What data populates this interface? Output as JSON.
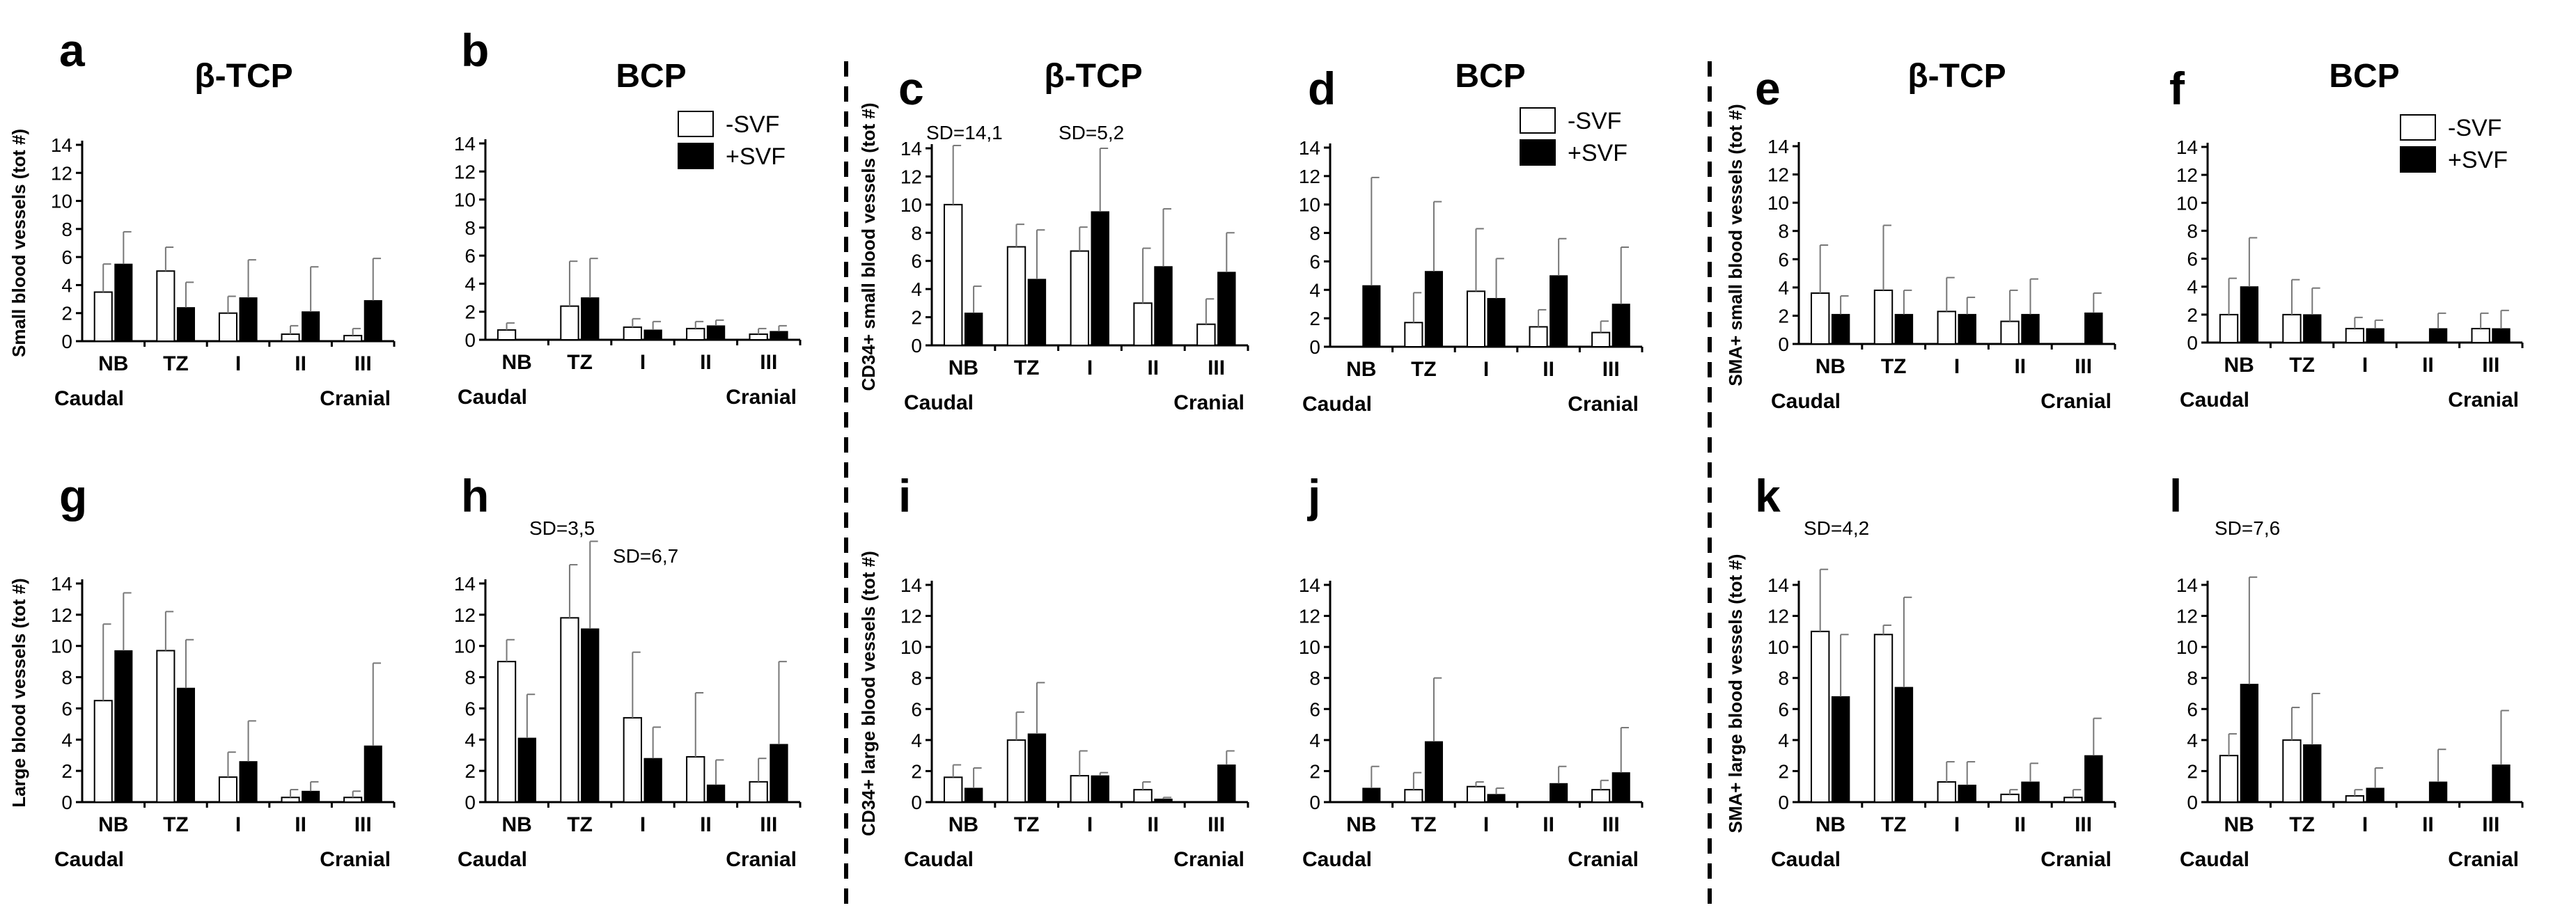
{
  "figure": {
    "legend": {
      "neg": "-SVF",
      "pos": "+SVF"
    },
    "sides": {
      "left": "Caudal",
      "right": "Cranial"
    }
  },
  "chart_data": [
    {
      "id": "a",
      "type": "bar",
      "letter": "a",
      "title": "β-TCP",
      "ylabel": "Small blood vessels (tot #)",
      "categories": [
        "NB",
        "TZ",
        "I",
        "II",
        "III"
      ],
      "ylim": [
        0,
        14
      ],
      "yticks": [
        "0",
        "2",
        "4",
        "6",
        "8",
        "10",
        "12",
        "14"
      ],
      "legend": false,
      "series": [
        {
          "name": "-SVF",
          "values": [
            3.5,
            5.0,
            2.0,
            0.5,
            0.4
          ],
          "errors": [
            2.0,
            1.7,
            1.2,
            0.6,
            0.5
          ]
        },
        {
          "name": "+SVF",
          "values": [
            5.5,
            2.4,
            3.1,
            2.1,
            2.9
          ],
          "errors": [
            2.3,
            1.8,
            2.7,
            3.2,
            3.0
          ]
        }
      ],
      "annotations": []
    },
    {
      "id": "b",
      "type": "bar",
      "letter": "b",
      "title": "BCP",
      "ylabel": "",
      "categories": [
        "NB",
        "TZ",
        "I",
        "II",
        "III"
      ],
      "ylim": [
        0,
        14
      ],
      "yticks": [
        "0",
        "2",
        "4",
        "6",
        "8",
        "10",
        "12",
        "14"
      ],
      "legend": true,
      "series": [
        {
          "name": "-SVF",
          "values": [
            0.7,
            2.4,
            0.9,
            0.8,
            0.4
          ],
          "errors": [
            0.5,
            3.2,
            0.6,
            0.5,
            0.4
          ]
        },
        {
          "name": "+SVF",
          "values": [
            0.0,
            3.0,
            0.7,
            1.0,
            0.6
          ],
          "errors": [
            0.0,
            2.8,
            0.6,
            0.4,
            0.4
          ]
        }
      ],
      "annotations": []
    },
    {
      "id": "c",
      "type": "bar",
      "letter": "c",
      "title": "β-TCP",
      "ylabel": "CD34+ small blood vessels (tot #)",
      "categories": [
        "NB",
        "TZ",
        "I",
        "II",
        "III"
      ],
      "ylim": [
        0,
        14
      ],
      "yticks": [
        "0",
        "2",
        "4",
        "6",
        "8",
        "10",
        "12",
        "14"
      ],
      "legend": false,
      "series": [
        {
          "name": "-SVF",
          "values": [
            10.0,
            7.0,
            6.7,
            3.0,
            1.5
          ],
          "errors": [
            4.2,
            1.6,
            1.7,
            3.9,
            1.8
          ]
        },
        {
          "name": "+SVF",
          "values": [
            2.3,
            4.7,
            9.5,
            5.6,
            5.2
          ],
          "errors": [
            1.9,
            3.5,
            4.5,
            4.1,
            2.8
          ]
        }
      ],
      "annotations": [
        {
          "text": "SD=14,1",
          "category": "NB"
        },
        {
          "text": "SD=5,2",
          "category": "I"
        }
      ]
    },
    {
      "id": "d",
      "type": "bar",
      "letter": "d",
      "title": "BCP",
      "ylabel": "",
      "categories": [
        "NB",
        "TZ",
        "I",
        "II",
        "III"
      ],
      "ylim": [
        0,
        14
      ],
      "yticks": [
        "0",
        "2",
        "4",
        "6",
        "8",
        "10",
        "12",
        "14"
      ],
      "legend": true,
      "series": [
        {
          "name": "-SVF",
          "values": [
            0.0,
            1.7,
            3.9,
            1.4,
            1.0
          ],
          "errors": [
            0.0,
            2.1,
            4.4,
            1.2,
            0.8
          ]
        },
        {
          "name": "+SVF",
          "values": [
            4.3,
            5.3,
            3.4,
            5.0,
            3.0
          ],
          "errors": [
            7.6,
            4.9,
            2.8,
            2.6,
            4.0
          ]
        }
      ],
      "annotations": []
    },
    {
      "id": "e",
      "type": "bar",
      "letter": "e",
      "title": "β-TCP",
      "ylabel": "SMA+ small blood vessels (tot #)",
      "categories": [
        "NB",
        "TZ",
        "I",
        "II",
        "III"
      ],
      "ylim": [
        0,
        14
      ],
      "yticks": [
        "0",
        "2",
        "4",
        "6",
        "8",
        "10",
        "12",
        "14"
      ],
      "legend": false,
      "series": [
        {
          "name": "-SVF",
          "values": [
            3.6,
            3.8,
            2.3,
            1.6,
            0.0
          ],
          "errors": [
            3.4,
            4.6,
            2.4,
            2.2,
            0.0
          ]
        },
        {
          "name": "+SVF",
          "values": [
            2.1,
            2.1,
            2.1,
            2.1,
            2.2
          ],
          "errors": [
            1.3,
            1.7,
            1.2,
            2.5,
            1.4
          ]
        }
      ],
      "annotations": []
    },
    {
      "id": "f",
      "type": "bar",
      "letter": "f",
      "title": "BCP",
      "ylabel": "",
      "categories": [
        "NB",
        "TZ",
        "I",
        "II",
        "III"
      ],
      "ylim": [
        0,
        14
      ],
      "yticks": [
        "0",
        "2",
        "4",
        "6",
        "8",
        "10",
        "12",
        "14"
      ],
      "legend": true,
      "series": [
        {
          "name": "-SVF",
          "values": [
            2.0,
            2.0,
            1.0,
            0.0,
            1.0
          ],
          "errors": [
            2.6,
            2.5,
            0.8,
            0.0,
            1.1
          ]
        },
        {
          "name": "+SVF",
          "values": [
            4.0,
            2.0,
            1.0,
            1.0,
            1.0
          ],
          "errors": [
            3.5,
            1.9,
            0.6,
            1.1,
            1.3
          ]
        }
      ],
      "annotations": []
    },
    {
      "id": "g",
      "type": "bar",
      "letter": "g",
      "title": "",
      "ylabel": "Large blood vessels (tot #)",
      "categories": [
        "NB",
        "TZ",
        "I",
        "II",
        "III"
      ],
      "ylim": [
        0,
        14
      ],
      "yticks": [
        "0",
        "2",
        "4",
        "6",
        "8",
        "10",
        "12",
        "14"
      ],
      "legend": false,
      "series": [
        {
          "name": "-SVF",
          "values": [
            6.5,
            9.7,
            1.6,
            0.3,
            0.3
          ],
          "errors": [
            4.9,
            2.5,
            1.6,
            0.5,
            0.4
          ]
        },
        {
          "name": "+SVF",
          "values": [
            9.7,
            7.3,
            2.6,
            0.7,
            3.6
          ],
          "errors": [
            3.7,
            3.1,
            2.6,
            0.6,
            5.3
          ]
        }
      ],
      "annotations": []
    },
    {
      "id": "h",
      "type": "bar",
      "letter": "h",
      "title": "",
      "ylabel": "",
      "categories": [
        "NB",
        "TZ",
        "I",
        "II",
        "III"
      ],
      "ylim": [
        0,
        14
      ],
      "yticks": [
        "0",
        "2",
        "4",
        "6",
        "8",
        "10",
        "12",
        "14"
      ],
      "legend": false,
      "series": [
        {
          "name": "-SVF",
          "values": [
            9.0,
            11.8,
            5.4,
            2.9,
            1.3
          ],
          "errors": [
            1.4,
            3.4,
            4.2,
            4.1,
            1.5
          ]
        },
        {
          "name": "+SVF",
          "values": [
            4.1,
            11.1,
            2.8,
            1.1,
            3.7
          ],
          "errors": [
            2.8,
            5.6,
            2.0,
            1.6,
            5.3
          ]
        }
      ],
      "annotations": [
        {
          "text": "SD=3,5",
          "category": "TZ"
        },
        {
          "text": "SD=6,7",
          "category": "TZ"
        }
      ]
    },
    {
      "id": "i",
      "type": "bar",
      "letter": "i",
      "title": "",
      "ylabel": "CD34+ large blood vessels (tot #)",
      "categories": [
        "NB",
        "TZ",
        "I",
        "II",
        "III"
      ],
      "ylim": [
        0,
        14
      ],
      "yticks": [
        "0",
        "2",
        "4",
        "6",
        "8",
        "10",
        "12",
        "14"
      ],
      "legend": false,
      "series": [
        {
          "name": "-SVF",
          "values": [
            1.6,
            4.0,
            1.7,
            0.8,
            0.0
          ],
          "errors": [
            0.8,
            1.8,
            1.6,
            0.5,
            0.0
          ]
        },
        {
          "name": "+SVF",
          "values": [
            0.9,
            4.4,
            1.7,
            0.2,
            2.4
          ],
          "errors": [
            1.3,
            3.3,
            0.2,
            0.1,
            0.9
          ]
        }
      ],
      "annotations": []
    },
    {
      "id": "j",
      "type": "bar",
      "letter": "j",
      "title": "",
      "ylabel": "",
      "categories": [
        "NB",
        "TZ",
        "I",
        "II",
        "III"
      ],
      "ylim": [
        0,
        14
      ],
      "yticks": [
        "0",
        "2",
        "4",
        "6",
        "8",
        "10",
        "12",
        "14"
      ],
      "legend": false,
      "series": [
        {
          "name": "-SVF",
          "values": [
            0.0,
            0.8,
            1.0,
            0.0,
            0.8
          ],
          "errors": [
            0.0,
            1.1,
            0.3,
            0.0,
            0.6
          ]
        },
        {
          "name": "+SVF",
          "values": [
            0.9,
            3.9,
            0.5,
            1.2,
            1.9
          ],
          "errors": [
            1.4,
            4.1,
            0.4,
            1.1,
            2.9
          ]
        }
      ],
      "annotations": []
    },
    {
      "id": "k",
      "type": "bar",
      "letter": "k",
      "title": "",
      "ylabel": "SMA+ large blood vessels (tot #)",
      "categories": [
        "NB",
        "TZ",
        "I",
        "II",
        "III"
      ],
      "ylim": [
        0,
        14
      ],
      "yticks": [
        "0",
        "2",
        "4",
        "6",
        "8",
        "10",
        "12",
        "14"
      ],
      "legend": false,
      "series": [
        {
          "name": "-SVF",
          "values": [
            11.0,
            10.8,
            1.3,
            0.5,
            0.3
          ],
          "errors": [
            4.0,
            0.6,
            1.3,
            0.3,
            0.5
          ]
        },
        {
          "name": "+SVF",
          "values": [
            6.8,
            7.4,
            1.1,
            1.3,
            3.0
          ],
          "errors": [
            4.0,
            5.8,
            1.5,
            1.2,
            2.4
          ]
        }
      ],
      "annotations": [
        {
          "text": "SD=4,2",
          "category": "NB"
        }
      ]
    },
    {
      "id": "l",
      "type": "bar",
      "letter": "l",
      "title": "",
      "ylabel": "",
      "categories": [
        "NB",
        "TZ",
        "I",
        "II",
        "III"
      ],
      "ylim": [
        0,
        14
      ],
      "yticks": [
        "0",
        "2",
        "4",
        "6",
        "8",
        "10",
        "12",
        "14"
      ],
      "legend": false,
      "series": [
        {
          "name": "-SVF",
          "values": [
            3.0,
            4.0,
            0.4,
            0.0,
            0.0
          ],
          "errors": [
            1.4,
            2.1,
            0.4,
            0.0,
            0.0
          ]
        },
        {
          "name": "+SVF",
          "values": [
            7.6,
            3.7,
            0.9,
            1.3,
            2.4
          ],
          "errors": [
            6.9,
            3.3,
            1.3,
            2.1,
            3.5
          ]
        }
      ],
      "annotations": [
        {
          "text": "SD=7,6",
          "category": "NB"
        }
      ]
    }
  ]
}
